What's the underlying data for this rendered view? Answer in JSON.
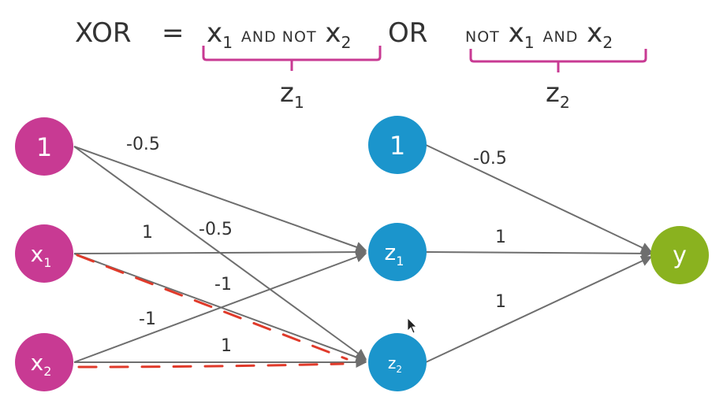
{
  "equation": {
    "lhs": "XOR",
    "equals": "=",
    "term1_var_a": "x",
    "term1_sub_a": "1",
    "term1_op": "AND NOT",
    "term1_var_b": "x",
    "term1_sub_b": "2",
    "or": "OR",
    "term2_op_a": "NOT",
    "term2_var_a": "x",
    "term2_sub_a": "1",
    "term2_op_b": "AND",
    "term2_var_b": "x",
    "term2_sub_b": "2"
  },
  "brace_labels": {
    "z1_var": "z",
    "z1_sub": "1",
    "z2_var": "z",
    "z2_sub": "2"
  },
  "nodes": {
    "bias_in": {
      "label": "1",
      "sub": ""
    },
    "x1": {
      "label": "x",
      "sub": "1"
    },
    "x2": {
      "label": "x",
      "sub": "2"
    },
    "bias_hidden": {
      "label": "1",
      "sub": ""
    },
    "z1": {
      "label": "z",
      "sub": "1"
    },
    "z2": {
      "label": "z",
      "sub": "2"
    },
    "y": {
      "label": "y",
      "sub": ""
    }
  },
  "weights": {
    "bias_z1": "-0.5",
    "bias_z2": "-0.5",
    "x1_z1": "1",
    "x1_z2": "-1",
    "x2_z1": "-1",
    "x2_z2": "1",
    "biash_y": "-0.5",
    "z1_y": "1",
    "z2_y": "1"
  },
  "colors": {
    "input": "#c83a93",
    "hidden": "#1b95cc",
    "output": "#8ab21f",
    "edge": "#6e6e6e",
    "annotation": "#e03a2a",
    "brace": "#c83a93"
  }
}
